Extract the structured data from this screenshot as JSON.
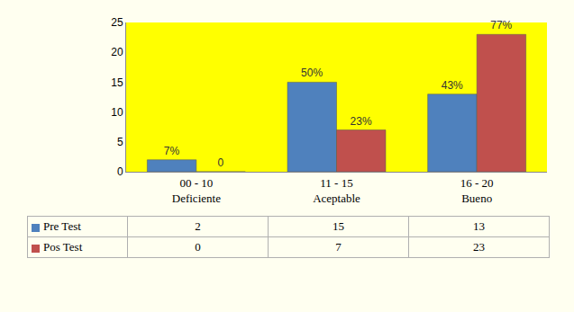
{
  "chart_data": {
    "type": "bar",
    "categories": [
      "00 - 10\nDeficiente",
      "11 - 15\nAceptable",
      "16 - 20\nBueno"
    ],
    "series": [
      {
        "name": "Pre Test",
        "color": "#4f81bd",
        "values": [
          2,
          15,
          13
        ],
        "percent_labels": [
          "7%",
          "50%",
          "43%"
        ]
      },
      {
        "name": "Pos Test",
        "color": "#c0504d",
        "values": [
          0,
          7,
          23
        ],
        "percent_labels": [
          "0",
          "23%",
          "77%"
        ]
      }
    ],
    "ylim": [
      0,
      25
    ],
    "yticks": [
      0,
      5,
      10,
      15,
      20,
      25
    ],
    "grid": false
  }
}
